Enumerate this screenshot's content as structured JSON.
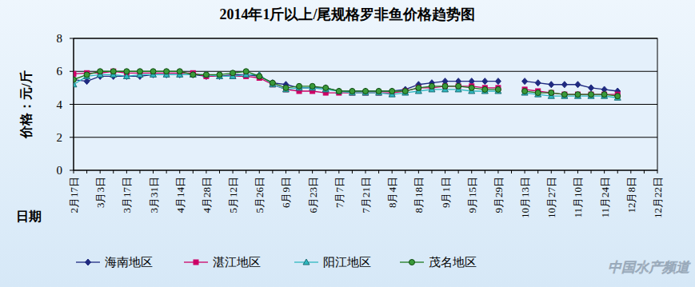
{
  "chart_data": {
    "type": "line",
    "title": "2014年1斤以上/尾规格罗非鱼价格趋势图",
    "y_label": "价格：元/斤",
    "x_label": "日期",
    "watermark": "中国水产频道",
    "categories": [
      "2月17日",
      null,
      "3月3日",
      null,
      "3月17日",
      null,
      "3月31日",
      null,
      "4月14日",
      null,
      "4月28日",
      null,
      "5月12日",
      null,
      "5月26日",
      null,
      "6月9日",
      null,
      "6月23日",
      null,
      "7月7日",
      null,
      "7月21日",
      null,
      "8月4日",
      null,
      "8月18日",
      null,
      "9月1日",
      null,
      "9月15日",
      null,
      "9月29日",
      null,
      "10月13日",
      null,
      "10月27日",
      null,
      "11月10日",
      null,
      "11月24日",
      null,
      "12月8日",
      null,
      "12月22日"
    ],
    "series": [
      {
        "name": "海南地区",
        "color": "#1f2a80",
        "marker": "diamond",
        "values": [
          5.5,
          5.4,
          5.7,
          5.7,
          5.7,
          5.7,
          5.8,
          5.8,
          5.8,
          5.8,
          5.7,
          5.7,
          5.8,
          5.8,
          5.7,
          5.3,
          5.2,
          5.0,
          5.0,
          5.0,
          4.8,
          4.8,
          4.8,
          4.8,
          4.8,
          4.9,
          5.2,
          5.3,
          5.4,
          5.4,
          5.4,
          5.4,
          5.4,
          null,
          5.4,
          5.3,
          5.2,
          5.2,
          5.2,
          5.0,
          4.9,
          4.8,
          null,
          null,
          null
        ]
      },
      {
        "name": "湛江地区",
        "color": "#cc0066",
        "marker": "square",
        "values": [
          5.85,
          5.9,
          5.9,
          6.0,
          5.9,
          5.9,
          5.9,
          5.9,
          5.9,
          5.9,
          5.7,
          5.7,
          5.7,
          5.7,
          5.6,
          5.2,
          4.9,
          4.8,
          4.8,
          4.7,
          4.7,
          4.7,
          4.7,
          4.7,
          4.7,
          4.8,
          5.0,
          5.0,
          5.1,
          5.1,
          5.1,
          5.0,
          5.0,
          null,
          4.9,
          4.8,
          4.7,
          4.6,
          4.6,
          4.6,
          4.6,
          4.6,
          null,
          null,
          null
        ]
      },
      {
        "name": "阳江地区",
        "color": "#2fb8c0",
        "marker": "triangle",
        "values": [
          5.2,
          5.7,
          5.8,
          5.8,
          5.7,
          5.8,
          5.8,
          5.8,
          5.8,
          5.8,
          5.8,
          5.7,
          5.7,
          5.8,
          5.8,
          5.2,
          4.9,
          5.0,
          5.0,
          4.9,
          4.8,
          4.7,
          4.7,
          4.7,
          4.6,
          4.7,
          4.8,
          4.9,
          4.9,
          4.9,
          4.8,
          4.8,
          4.8,
          null,
          4.7,
          4.6,
          4.5,
          4.5,
          4.5,
          4.5,
          4.5,
          4.4,
          null,
          null,
          null
        ]
      },
      {
        "name": "茂名地区",
        "color": "#1e7a1e",
        "marker": "circle",
        "values": [
          5.5,
          5.8,
          6.0,
          6.0,
          6.0,
          6.0,
          6.0,
          6.0,
          6.0,
          5.8,
          5.8,
          5.8,
          5.9,
          6.0,
          5.7,
          5.3,
          5.0,
          5.1,
          5.1,
          5.0,
          4.8,
          4.8,
          4.8,
          4.8,
          4.8,
          4.8,
          5.0,
          5.1,
          5.1,
          5.1,
          5.0,
          4.9,
          4.9,
          null,
          4.8,
          4.7,
          4.7,
          4.6,
          4.6,
          4.6,
          4.6,
          4.5,
          null,
          null,
          null
        ]
      }
    ],
    "ylim": [
      0,
      8
    ],
    "yticks": [
      0,
      2,
      4,
      6,
      8
    ],
    "grid": true,
    "legend": "bottom"
  }
}
